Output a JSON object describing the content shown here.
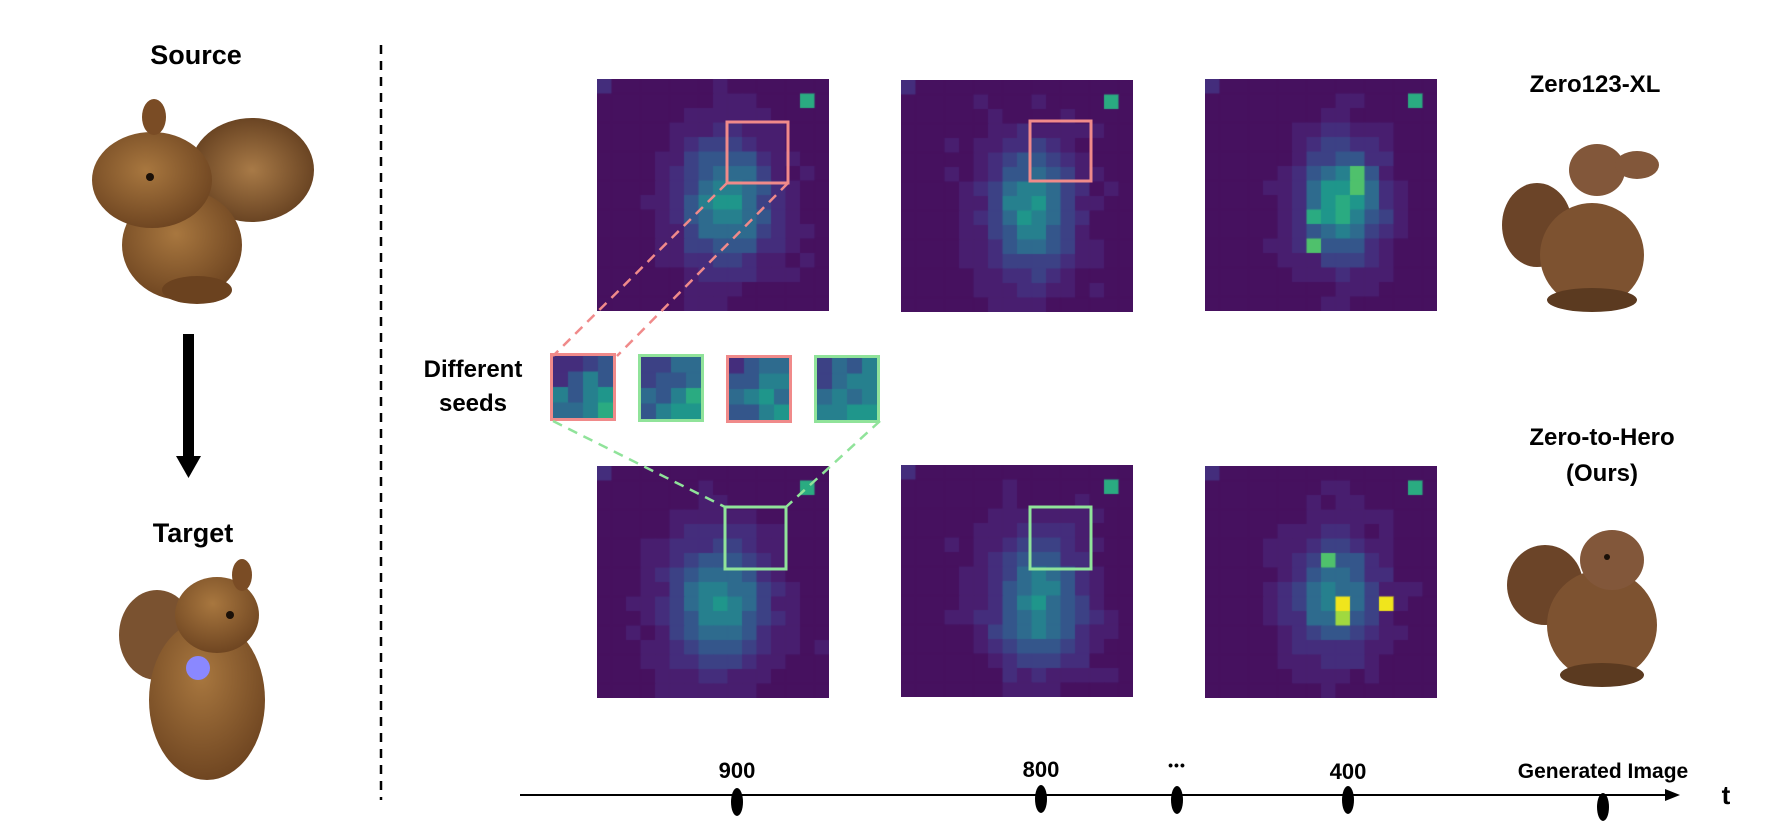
{
  "left": {
    "source_label": "Source",
    "target_label": "Target"
  },
  "right": {
    "top_method": "Zero123-XL",
    "bottom_method_line1": "Zero-to-Hero",
    "bottom_method_line2": "(Ours)"
  },
  "seeds_label_line1": "Different",
  "seeds_label_line2": "seeds",
  "timeline": {
    "ticks": [
      "900",
      "800",
      "•••",
      "400",
      "Generated Image"
    ],
    "axis_label": "t"
  },
  "colors": {
    "heatmap_bg": "#46115f",
    "box_red": "#f08a8a",
    "box_green": "#90e39a",
    "target_dot": "#8a88ff",
    "plush_brown": "#8c5a2f"
  }
}
